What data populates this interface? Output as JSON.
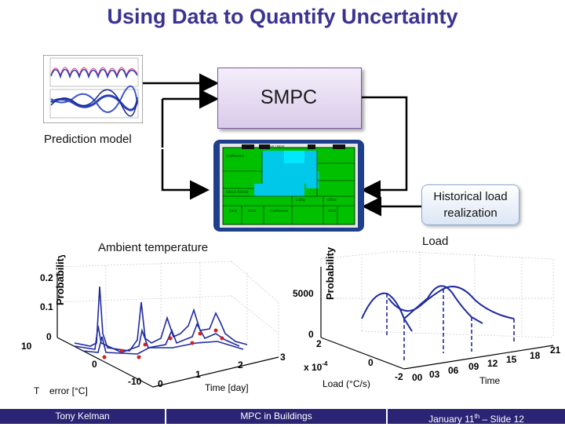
{
  "title": "Using Data to Quantify Uncertainty",
  "smpc_label": "SMPC",
  "prediction_model_label": "Prediction model",
  "historical_load": {
    "line1": "Historical load",
    "line2": "realization"
  },
  "ambient_label": "Ambient temperature",
  "load_label": "Load",
  "left_plot": {
    "ylabel": "Probability",
    "yticks": [
      "0.2",
      "0.1",
      "0"
    ],
    "depth_ticks": [
      "10",
      "0",
      "-10"
    ],
    "xticks": [
      "0",
      "1",
      "2",
      "3"
    ],
    "xlabel": "Time [day]",
    "zlabel": "T",
    "zlabel_tail": "error [°C]"
  },
  "right_plot": {
    "ylabel": "Probability",
    "yticks": [
      "5000",
      "0"
    ],
    "depth_ticks": [
      "2",
      "0",
      "-2"
    ],
    "exponent": "x 10",
    "exponent_sup": "-4",
    "xticks": [
      "00",
      "03",
      "06",
      "09",
      "12",
      "15",
      "18",
      "21"
    ],
    "xlabel": "Time",
    "zlabel": "Load (°C/s)"
  },
  "building_rooms": [
    "Conference",
    "Hallway",
    "Mech Room",
    "Lobby",
    "Office"
  ],
  "footer": {
    "left": "Tony Kelman",
    "center": "MPC in Buildings",
    "right_prefix": "January 11",
    "right_sup": "th",
    "right_suffix": " – Slide 12"
  },
  "colors": {
    "title": "#3b3391",
    "footer": "#2b2374",
    "curve": "#1f2a9e",
    "marker": "#d42020"
  }
}
